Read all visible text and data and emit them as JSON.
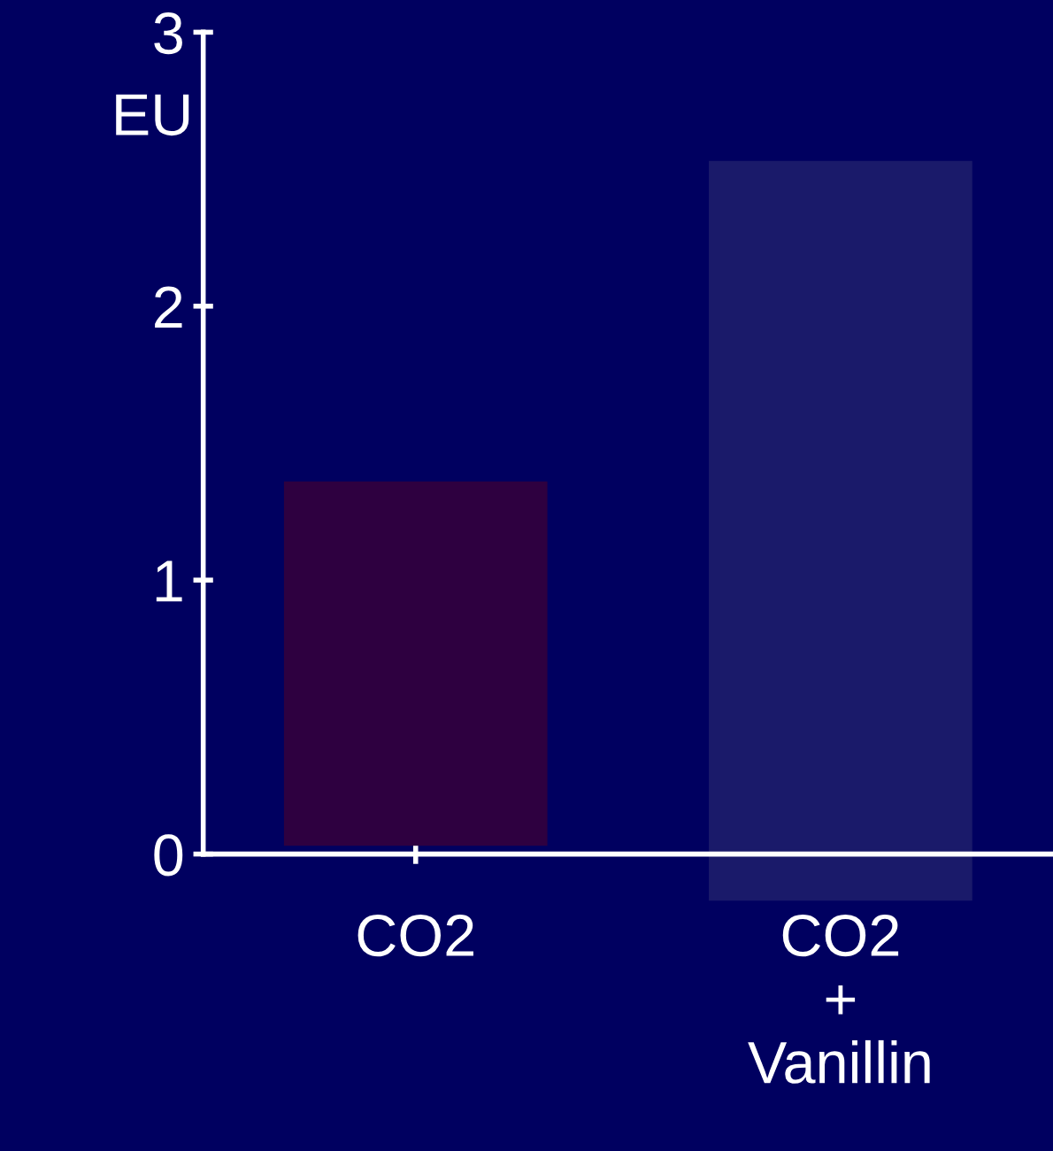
{
  "chart_data": {
    "type": "bar",
    "ylabel": "EU",
    "categories": [
      "CO2",
      "CO2\n+\nVanillin"
    ],
    "values": [
      1.33,
      2.7
    ],
    "base": [
      0.03,
      -0.17
    ],
    "colors": [
      "#2e0040",
      "#1a1a6a"
    ],
    "ylim": [
      0,
      3
    ],
    "yticks": [
      0,
      1,
      2,
      3
    ],
    "grid": false,
    "legend": false
  }
}
